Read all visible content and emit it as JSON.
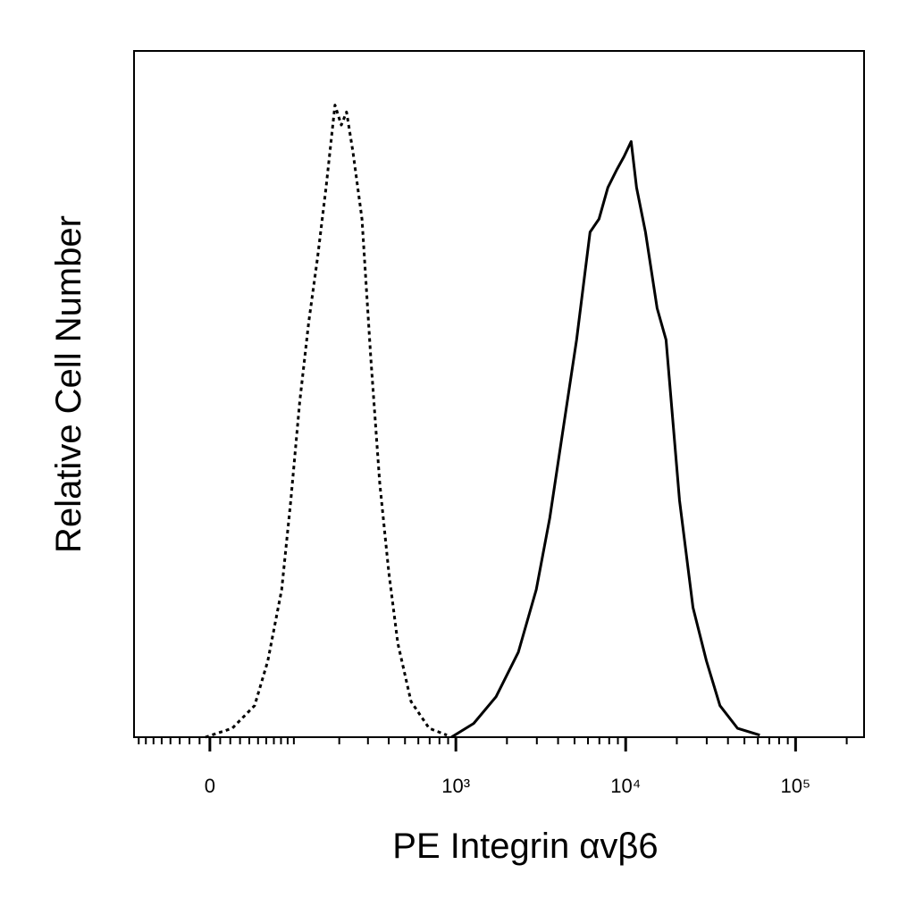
{
  "chart_data": {
    "type": "histogram-overlay",
    "x_label": "PE  Integrin αvβ6",
    "y_label": "Relative Cell Number",
    "xscale": "biexponential",
    "xlim": [
      -87,
      253000
    ],
    "ylim": [
      0,
      100
    ],
    "xticks": [
      0,
      {
        "value": 1000,
        "label": "10³"
      },
      {
        "value": 10000,
        "label": "10⁴"
      },
      {
        "value": 100000,
        "label": "10⁵"
      }
    ],
    "xminorticks": [
      -80,
      -70,
      -60,
      -50,
      -40,
      -30,
      -20,
      -10,
      10,
      20,
      30,
      40,
      50,
      60,
      70,
      80,
      90,
      100,
      200,
      300,
      400,
      500,
      600,
      700,
      800,
      900,
      2000,
      3000,
      4000,
      5000,
      6000,
      7000,
      8000,
      9000,
      20000,
      30000,
      40000,
      50000,
      60000,
      70000,
      80000,
      90000,
      200000
    ],
    "series": [
      {
        "color": "#000000",
        "dash": "dotted",
        "x": [
          -4.3,
          22,
          46,
          62,
          81,
          95,
          110,
          127,
          145,
          165,
          188,
          206,
          222,
          243,
          276,
          312,
          353,
          400,
          453,
          543,
          695,
          885
        ],
        "values": [
          0,
          1.3,
          4.6,
          11.1,
          21.5,
          34.5,
          48.8,
          60.5,
          69.7,
          80.1,
          92.1,
          89.2,
          91.1,
          85.3,
          75.5,
          55.3,
          37.1,
          24.1,
          13.7,
          5.2,
          1.3,
          0.3
        ]
      },
      {
        "color": "#000000",
        "dash": "solid",
        "x": [
          941,
          1274,
          1726,
          2335,
          2976,
          3572,
          4284,
          5141,
          6170,
          6964,
          7857,
          8866,
          9775,
          10772,
          11586,
          13078,
          15316,
          17284,
          20748,
          24898,
          29888,
          35886,
          45518,
          61590
        ],
        "values": [
          0,
          2.0,
          5.9,
          12.4,
          21.5,
          31.9,
          44.9,
          57.9,
          73.6,
          75.5,
          80.1,
          82.7,
          84.6,
          86.8,
          80.1,
          73.6,
          62.5,
          57.9,
          34.5,
          18.9,
          11.1,
          4.6,
          1.3,
          0.3
        ]
      }
    ]
  }
}
